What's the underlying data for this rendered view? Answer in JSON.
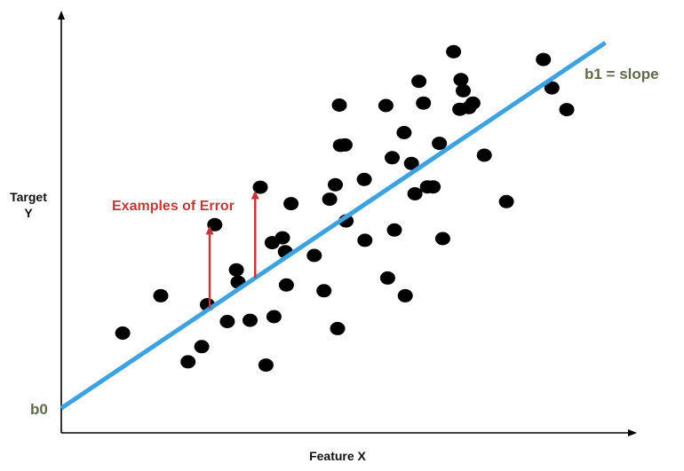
{
  "chart_data": {
    "type": "scatter",
    "title": "",
    "xlabel": "Feature X",
    "ylabel": "Target\nY",
    "intercept_label": "b0",
    "slope_label": "b1 = slope",
    "error_label": "Examples of Error",
    "xlim": [
      0,
      100
    ],
    "ylim": [
      0,
      100
    ],
    "grid": false,
    "legend": "none",
    "regression_line": {
      "intercept": 6,
      "slope": 0.93,
      "x_end": 95.7,
      "color": "#3fa2e0"
    },
    "point_color": "#000000",
    "error_color": "#c0383a",
    "points": [
      {
        "x": 10.8,
        "y": 24.3
      },
      {
        "x": 17.5,
        "y": 33.4
      },
      {
        "x": 22.3,
        "y": 17.3
      },
      {
        "x": 24.7,
        "y": 21.0
      },
      {
        "x": 25.7,
        "y": 31.2
      },
      {
        "x": 27.0,
        "y": 50.7
      },
      {
        "x": 29.2,
        "y": 27.1
      },
      {
        "x": 30.8,
        "y": 39.7
      },
      {
        "x": 31.1,
        "y": 36.7
      },
      {
        "x": 33.2,
        "y": 27.4
      },
      {
        "x": 35.0,
        "y": 59.8
      },
      {
        "x": 36.0,
        "y": 16.5
      },
      {
        "x": 37.1,
        "y": 46.3
      },
      {
        "x": 37.4,
        "y": 28.3
      },
      {
        "x": 38.9,
        "y": 47.5
      },
      {
        "x": 39.4,
        "y": 44.1
      },
      {
        "x": 39.6,
        "y": 36.0
      },
      {
        "x": 40.4,
        "y": 55.8
      },
      {
        "x": 44.5,
        "y": 43.2
      },
      {
        "x": 46.2,
        "y": 34.6
      },
      {
        "x": 47.2,
        "y": 56.9
      },
      {
        "x": 48.2,
        "y": 60.4
      },
      {
        "x": 48.6,
        "y": 25.4
      },
      {
        "x": 48.9,
        "y": 79.8
      },
      {
        "x": 49.1,
        "y": 70.0
      },
      {
        "x": 49.9,
        "y": 70.1
      },
      {
        "x": 50.1,
        "y": 51.6
      },
      {
        "x": 53.3,
        "y": 61.7
      },
      {
        "x": 53.4,
        "y": 46.9
      },
      {
        "x": 57.1,
        "y": 79.7
      },
      {
        "x": 57.4,
        "y": 37.7
      },
      {
        "x": 58.2,
        "y": 67.0
      },
      {
        "x": 58.6,
        "y": 49.4
      },
      {
        "x": 60.3,
        "y": 73.1
      },
      {
        "x": 60.5,
        "y": 33.4
      },
      {
        "x": 61.6,
        "y": 65.6
      },
      {
        "x": 62.2,
        "y": 58.2
      },
      {
        "x": 62.9,
        "y": 85.6
      },
      {
        "x": 63.7,
        "y": 80.3
      },
      {
        "x": 64.4,
        "y": 59.9
      },
      {
        "x": 65.4,
        "y": 59.9
      },
      {
        "x": 66.5,
        "y": 70.5
      },
      {
        "x": 67.1,
        "y": 47.3
      },
      {
        "x": 69.0,
        "y": 92.8
      },
      {
        "x": 70.1,
        "y": 78.8
      },
      {
        "x": 70.3,
        "y": 86.0
      },
      {
        "x": 70.7,
        "y": 83.3
      },
      {
        "x": 71.7,
        "y": 79.2
      },
      {
        "x": 72.4,
        "y": 80.3
      },
      {
        "x": 74.4,
        "y": 67.6
      },
      {
        "x": 78.3,
        "y": 56.3
      },
      {
        "x": 84.8,
        "y": 90.9
      },
      {
        "x": 86.3,
        "y": 84.0
      },
      {
        "x": 88.9,
        "y": 78.7
      }
    ],
    "error_examples": [
      {
        "x": 26.1,
        "y_from": 30.3,
        "y_to": 49.6
      },
      {
        "x": 34.1,
        "y_from": 37.7,
        "y_to": 58.2
      }
    ]
  }
}
